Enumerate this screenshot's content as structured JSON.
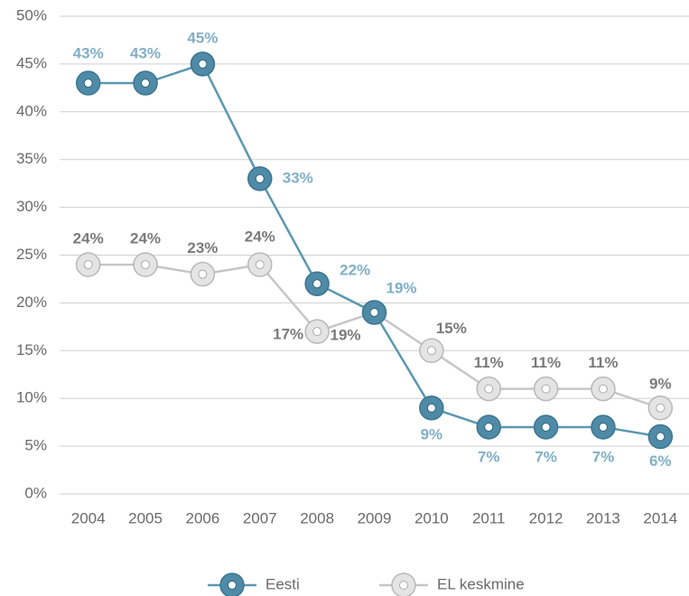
{
  "chart_data": {
    "type": "line",
    "categories": [
      "2004",
      "2005",
      "2006",
      "2007",
      "2008",
      "2009",
      "2010",
      "2011",
      "2012",
      "2013",
      "2014"
    ],
    "series": [
      {
        "name": "Eesti",
        "color": "#5b97b1",
        "label_color": "#80afc6",
        "values": [
          43,
          43,
          45,
          33,
          22,
          19,
          9,
          7,
          7,
          7,
          6
        ],
        "value_labels": [
          "43%",
          "43%",
          "45%",
          "33%",
          "22%",
          "19%",
          "9%",
          "7%",
          "7%",
          "7%",
          "6%"
        ]
      },
      {
        "name": "EL keskmine",
        "color": "#c6c6c6",
        "label_color": "#7a7a7a",
        "values": [
          24,
          24,
          23,
          24,
          17,
          19,
          15,
          11,
          11,
          11,
          9
        ],
        "value_labels": [
          "24%",
          "24%",
          "23%",
          "24%",
          "17%",
          "19%",
          "15%",
          "11%",
          "11%",
          "11%",
          "9%"
        ]
      }
    ],
    "ylim": [
      0,
      50
    ],
    "yticks": [
      {
        "value": 0,
        "label": "0%"
      },
      {
        "value": 5,
        "label": "5%"
      },
      {
        "value": 10,
        "label": "10%"
      },
      {
        "value": 15,
        "label": "15%"
      },
      {
        "value": 20,
        "label": "20%"
      },
      {
        "value": 25,
        "label": "25%"
      },
      {
        "value": 30,
        "label": "30%"
      },
      {
        "value": 35,
        "label": "35%"
      },
      {
        "value": 40,
        "label": "40%"
      },
      {
        "value": 45,
        "label": "45%"
      },
      {
        "value": 50,
        "label": "50%"
      }
    ],
    "grid": true,
    "legend": "bottom"
  }
}
